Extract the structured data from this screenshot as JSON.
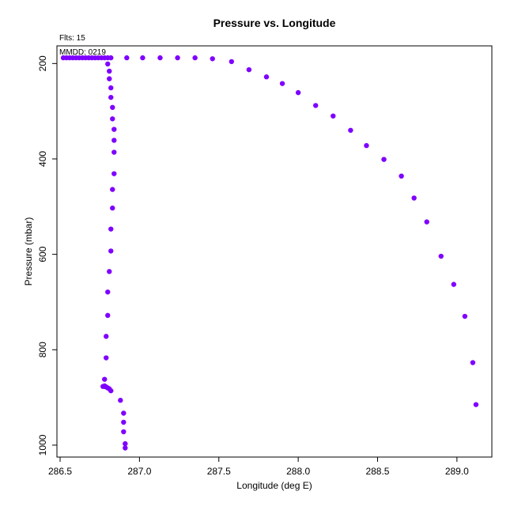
{
  "chart_data": {
    "type": "scatter",
    "title": "Pressure vs. Longitude",
    "xlabel": "Longitude (deg E)",
    "ylabel": "Pressure (mbar)",
    "annotations": {
      "flts": "Flts: 15",
      "mmdd": "MMDD: 0219"
    },
    "xlim": [
      286.48,
      289.22
    ],
    "ylim": [
      1025,
      163
    ],
    "y_reversed": true,
    "x_ticks": [
      286.5,
      287.0,
      287.5,
      288.0,
      288.5,
      289.0
    ],
    "x_tick_labels": [
      "286.5",
      "287.0",
      "287.5",
      "288.0",
      "288.5",
      "289.0"
    ],
    "y_ticks": [
      200,
      400,
      600,
      800,
      1000
    ],
    "y_tick_labels": [
      "200",
      "400",
      "600",
      "800",
      "1000"
    ],
    "grid": false,
    "marker_color": "#7f00ff",
    "series": [
      {
        "x": [
          286.52,
          286.54,
          286.56,
          286.58,
          286.6,
          286.62,
          286.64,
          286.66,
          286.68,
          286.7,
          286.72,
          286.74,
          286.76,
          286.78,
          286.8,
          286.82,
          286.92,
          287.02,
          287.13,
          287.24,
          287.35,
          287.46,
          287.58,
          287.69,
          287.8,
          287.9,
          288.0,
          288.11,
          288.22,
          288.33,
          288.43,
          288.54,
          288.65,
          288.73,
          288.81,
          288.9,
          288.98,
          289.05,
          289.1,
          289.12,
          286.8,
          286.81,
          286.81,
          286.82,
          286.82,
          286.83,
          286.83,
          286.84,
          286.84,
          286.84,
          286.84,
          286.83,
          286.83,
          286.82,
          286.82,
          286.81,
          286.8,
          286.8,
          286.79,
          286.79,
          286.78,
          286.78,
          286.78,
          286.77,
          286.78,
          286.79,
          286.8,
          286.81,
          286.82,
          286.88,
          286.9,
          286.9,
          286.9,
          286.91,
          286.91
        ],
        "y": [
          188,
          188,
          188,
          188,
          188,
          188,
          188,
          188,
          188,
          188,
          188,
          188,
          188,
          188,
          188,
          188,
          188,
          188,
          188,
          188,
          188,
          190,
          196,
          213,
          228,
          242,
          261,
          288,
          310,
          340,
          372,
          401,
          436,
          482,
          532,
          604,
          663,
          730,
          827,
          915,
          201,
          216,
          232,
          251,
          271,
          292,
          316,
          338,
          361,
          386,
          431,
          464,
          503,
          547,
          593,
          636,
          679,
          728,
          772,
          817,
          862,
          876,
          877,
          877,
          876,
          878,
          880,
          882,
          886,
          906,
          933,
          952,
          972,
          997,
          1006
        ]
      }
    ]
  }
}
